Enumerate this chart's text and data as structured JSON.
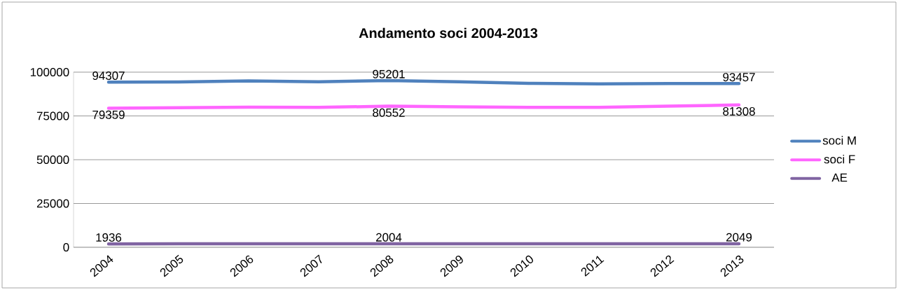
{
  "chart_data": {
    "type": "line",
    "title": "Andamento soci 2004-2013",
    "categories": [
      "2004",
      "2005",
      "2006",
      "2007",
      "2008",
      "2009",
      "2010",
      "2011",
      "2012",
      "2013"
    ],
    "series": [
      {
        "name": "soci M",
        "color": "#4f81bd",
        "values": [
          94307,
          94400,
          95000,
          94500,
          95201,
          94500,
          93600,
          93300,
          93500,
          93457
        ],
        "value_labels": [
          "94307",
          null,
          null,
          null,
          "95201",
          null,
          null,
          null,
          null,
          "93457"
        ]
      },
      {
        "name": "soci F",
        "color": "#ff66ff",
        "values": [
          79359,
          79700,
          80000,
          79900,
          80552,
          80200,
          79900,
          79900,
          80600,
          81308
        ],
        "value_labels": [
          "79359",
          null,
          null,
          null,
          "80552",
          null,
          null,
          null,
          null,
          "81308"
        ]
      },
      {
        "name": "AE",
        "color": "#8064a2",
        "values": [
          1936,
          2000,
          2000,
          2000,
          2004,
          2000,
          2000,
          2000,
          2000,
          2049
        ],
        "value_labels": [
          "1936",
          null,
          null,
          null,
          "2004",
          null,
          null,
          null,
          null,
          "2049"
        ]
      }
    ],
    "ylim": [
      0,
      100000
    ],
    "yticks": [
      0,
      25000,
      50000,
      75000,
      100000
    ],
    "grid": "y",
    "legend": "right",
    "marker": "none",
    "line_style": "solid"
  }
}
